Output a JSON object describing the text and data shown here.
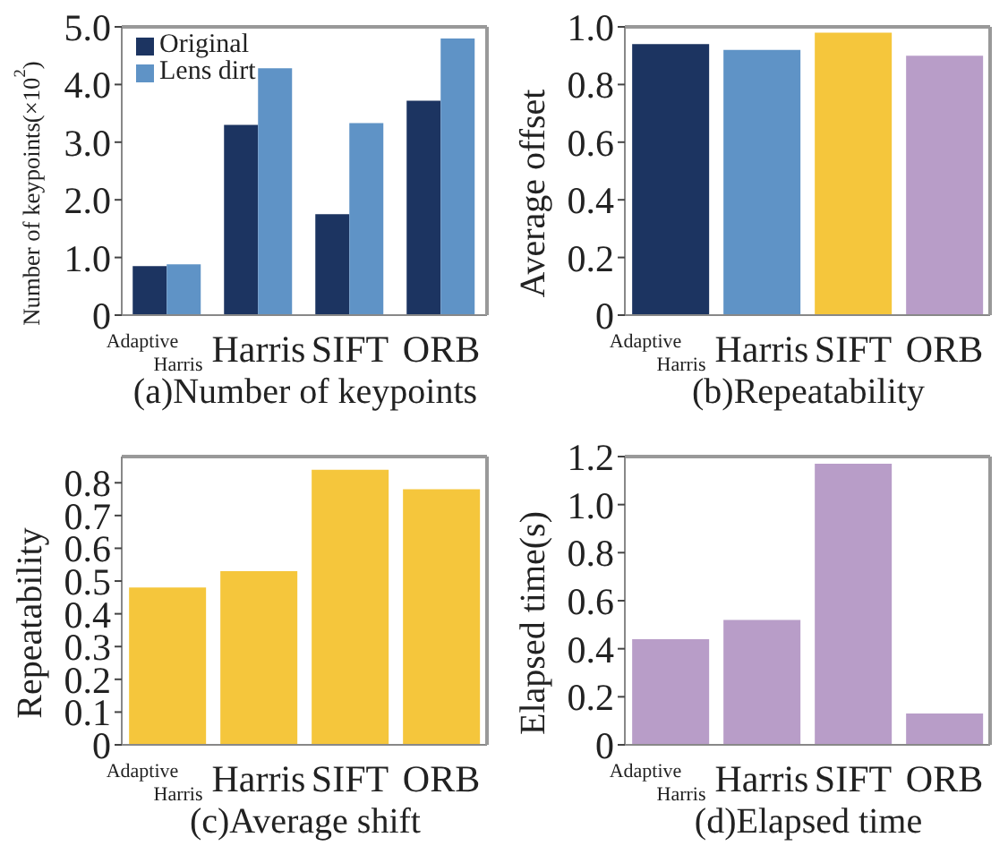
{
  "chart_data": [
    {
      "type": "bar",
      "title": "(a)Number of keypoints",
      "ylabel": "Number of keypoints(×10$^{2}$)",
      "categories": [
        "Adaptive Harris",
        "Harris",
        "SIFT",
        "ORB"
      ],
      "series": [
        {
          "name": "Original",
          "color": "#1c3461",
          "values": [
            0.85,
            3.3,
            1.75,
            3.72
          ]
        },
        {
          "name": "Lens dirt",
          "color": "#5f93c6",
          "values": [
            0.88,
            4.28,
            3.33,
            4.8
          ]
        }
      ],
      "ylim": [
        0,
        5
      ],
      "yticks": [
        0,
        {
          "value": 1,
          "label": "1.0"
        },
        {
          "value": 2,
          "label": "2.0"
        },
        {
          "value": 3,
          "label": "3.0"
        },
        {
          "value": 4,
          "label": "4.0"
        },
        {
          "value": 5,
          "label": "5.0"
        }
      ],
      "grid": false,
      "legend": "top left"
    },
    {
      "type": "bar",
      "title": "(b)Repeatability",
      "ylabel": "Average offset",
      "categories": [
        "Adaptive Harris",
        "Harris",
        "SIFT",
        "ORB"
      ],
      "values": [
        0.94,
        0.92,
        0.98,
        0.9
      ],
      "colors": [
        "#1c3461",
        "#5f93c6",
        "#f5c63c",
        "#b89dc8"
      ],
      "ylim": [
        0,
        1
      ],
      "yticks": [
        0,
        0.2,
        0.4,
        0.6,
        0.8,
        {
          "value": 1,
          "label": "1.0"
        }
      ],
      "grid": false,
      "legend": false
    },
    {
      "type": "bar",
      "title": "(c)Average shift",
      "ylabel": "Repeatability",
      "categories": [
        "Adaptive Harris",
        "Harris",
        "SIFT",
        "ORB"
      ],
      "values": [
        0.48,
        0.53,
        0.84,
        0.78
      ],
      "color": "#f5c63c",
      "ylim": [
        0,
        0.88
      ],
      "yticks": [
        0,
        0.1,
        0.2,
        0.3,
        0.4,
        0.5,
        0.6,
        0.7,
        0.8
      ],
      "grid": false,
      "legend": false
    },
    {
      "type": "bar",
      "title": "(d)Elapsed time",
      "ylabel": "Elapsed time(s)",
      "categories": [
        "Adaptive Harris",
        "Harris",
        "SIFT",
        "ORB"
      ],
      "values": [
        0.44,
        0.52,
        1.17,
        0.13
      ],
      "color": "#b89dc8",
      "ylim": [
        0,
        1.2
      ],
      "yticks": [
        0,
        0.2,
        0.4,
        0.6,
        0.8,
        {
          "value": 1,
          "label": "1.0"
        },
        1.2
      ],
      "grid": false,
      "legend": false
    }
  ]
}
